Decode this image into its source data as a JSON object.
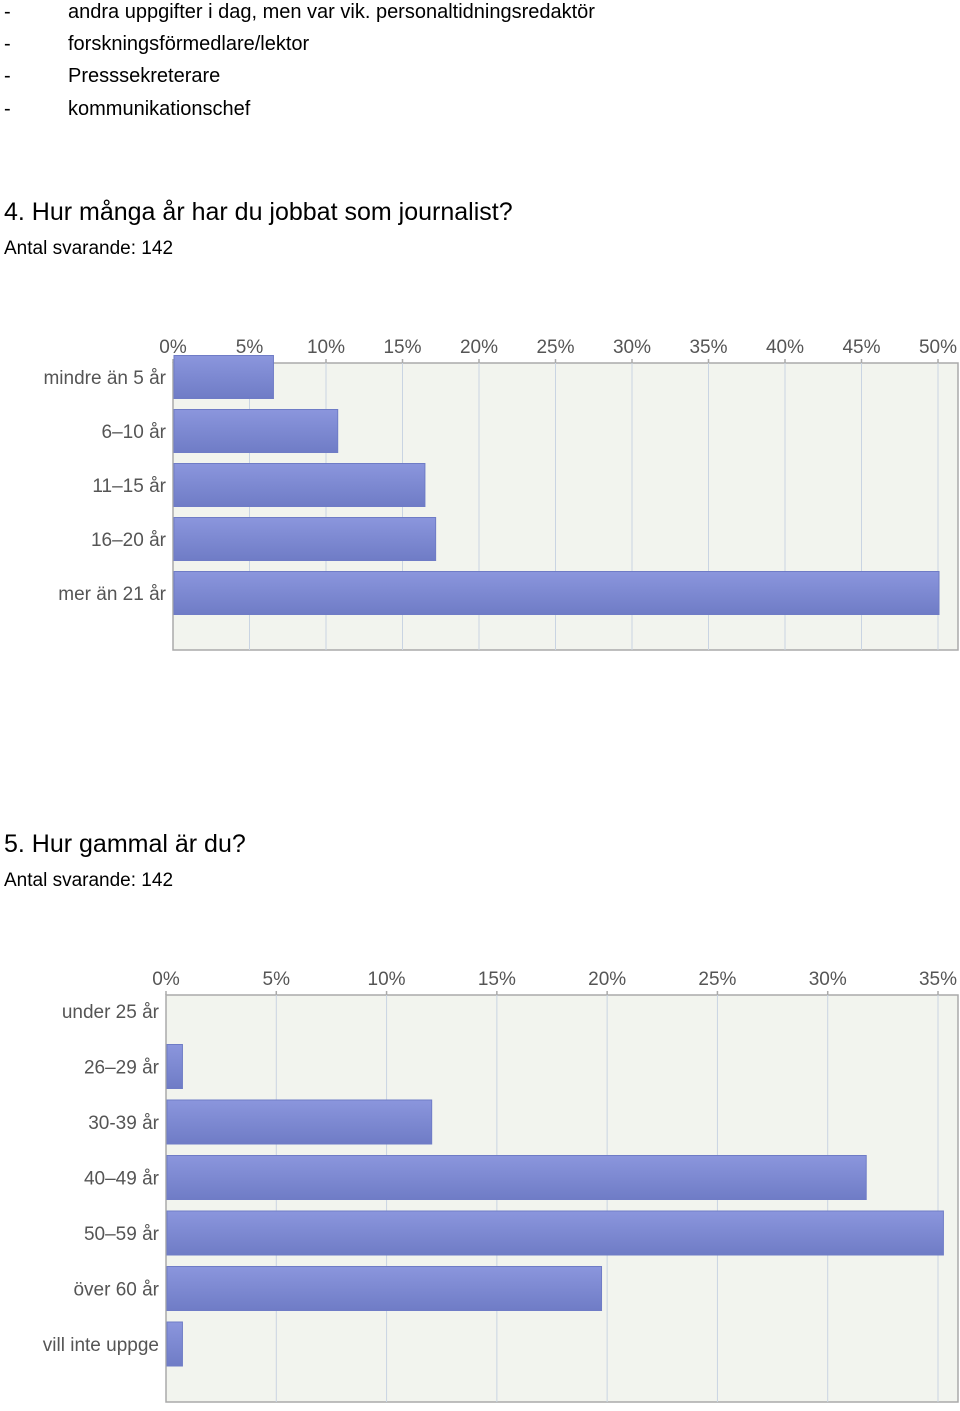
{
  "list": {
    "items": [
      "andra uppgifter i dag, men var vik. personaltidningsredaktör",
      "forskningsförmedlare/lektor",
      "Presssekreterare",
      "kommunikationschef"
    ],
    "bullet": "-"
  },
  "questions": [
    {
      "title": "4. Hur många år har du jobbat som journalist?",
      "respondents": "Antal svarande: 142"
    },
    {
      "title": "5. Hur gammal är du?",
      "respondents": "Antal svarande: 142"
    }
  ],
  "colors": {
    "bar": "#8b96dd",
    "bar_dark": "#6f7cc6",
    "plot_bg": "#f2f4ee",
    "grid": "#c9d4e2",
    "axis": "#aaaaaa",
    "tick_label": "#555555"
  },
  "chart_data": [
    {
      "type": "bar",
      "orientation": "horizontal",
      "categories": [
        "mindre än 5 år",
        "6–10 år",
        "11–15 år",
        "16–20 år",
        "mer än 21 år"
      ],
      "values": [
        6.5,
        10.7,
        16.4,
        17.1,
        50.0
      ],
      "xlim": [
        0,
        50
      ],
      "xticks": [
        "0%",
        "5%",
        "10%",
        "15%",
        "20%",
        "25%",
        "30%",
        "35%",
        "40%",
        "45%",
        "50%"
      ],
      "grid": true,
      "xaxis_position": "top"
    },
    {
      "type": "bar",
      "orientation": "horizontal",
      "categories": [
        "under 25 år",
        "26–29 år",
        "30-39 år",
        "40–49 år",
        "50–59 år",
        "över 60 år",
        "vill inte uppge"
      ],
      "values": [
        0,
        0.7,
        12.0,
        31.7,
        35.2,
        19.7,
        0.7
      ],
      "xlim": [
        0,
        37
      ],
      "xticks": [
        "0%",
        "5%",
        "10%",
        "15%",
        "20%",
        "25%",
        "30%",
        "35%"
      ],
      "grid": true,
      "xaxis_position": "top"
    }
  ]
}
